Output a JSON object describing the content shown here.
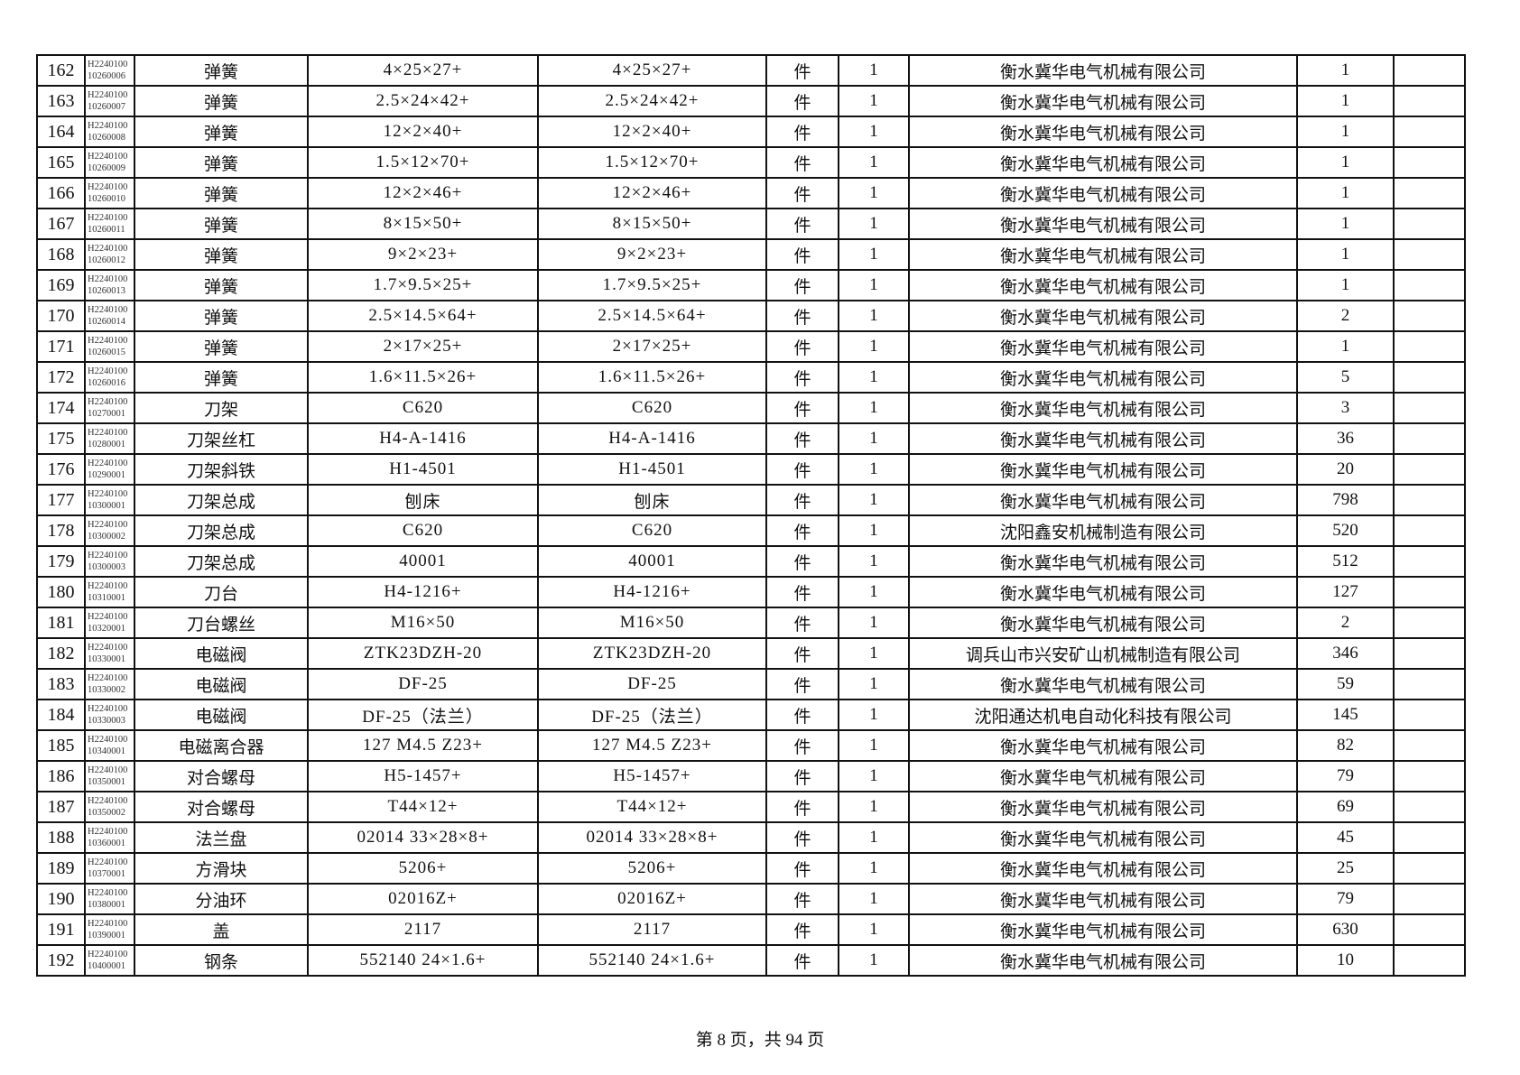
{
  "table": {
    "rows": [
      [
        "162",
        "H2240100",
        "10260006",
        "弹簧",
        "4×25×27+",
        "4×25×27+",
        "件",
        "1",
        "衡水冀华电气机械有限公司",
        "1",
        ""
      ],
      [
        "163",
        "H2240100",
        "10260007",
        "弹簧",
        "2.5×24×42+",
        "2.5×24×42+",
        "件",
        "1",
        "衡水冀华电气机械有限公司",
        "1",
        ""
      ],
      [
        "164",
        "H2240100",
        "10260008",
        "弹簧",
        "12×2×40+",
        "12×2×40+",
        "件",
        "1",
        "衡水冀华电气机械有限公司",
        "1",
        ""
      ],
      [
        "165",
        "H2240100",
        "10260009",
        "弹簧",
        "1.5×12×70+",
        "1.5×12×70+",
        "件",
        "1",
        "衡水冀华电气机械有限公司",
        "1",
        ""
      ],
      [
        "166",
        "H2240100",
        "10260010",
        "弹簧",
        "12×2×46+",
        "12×2×46+",
        "件",
        "1",
        "衡水冀华电气机械有限公司",
        "1",
        ""
      ],
      [
        "167",
        "H2240100",
        "10260011",
        "弹簧",
        "8×15×50+",
        "8×15×50+",
        "件",
        "1",
        "衡水冀华电气机械有限公司",
        "1",
        ""
      ],
      [
        "168",
        "H2240100",
        "10260012",
        "弹簧",
        "9×2×23+",
        "9×2×23+",
        "件",
        "1",
        "衡水冀华电气机械有限公司",
        "1",
        ""
      ],
      [
        "169",
        "H2240100",
        "10260013",
        "弹簧",
        "1.7×9.5×25+",
        "1.7×9.5×25+",
        "件",
        "1",
        "衡水冀华电气机械有限公司",
        "1",
        ""
      ],
      [
        "170",
        "H2240100",
        "10260014",
        "弹簧",
        "2.5×14.5×64+",
        "2.5×14.5×64+",
        "件",
        "1",
        "衡水冀华电气机械有限公司",
        "2",
        ""
      ],
      [
        "171",
        "H2240100",
        "10260015",
        "弹簧",
        "2×17×25+",
        "2×17×25+",
        "件",
        "1",
        "衡水冀华电气机械有限公司",
        "1",
        ""
      ],
      [
        "172",
        "H2240100",
        "10260016",
        "弹簧",
        "1.6×11.5×26+",
        "1.6×11.5×26+",
        "件",
        "1",
        "衡水冀华电气机械有限公司",
        "5",
        ""
      ],
      [
        "174",
        "H2240100",
        "10270001",
        "刀架",
        "C620",
        "C620",
        "件",
        "1",
        "衡水冀华电气机械有限公司",
        "3",
        ""
      ],
      [
        "175",
        "H2240100",
        "10280001",
        "刀架丝杠",
        "H4-A-1416",
        "H4-A-1416",
        "件",
        "1",
        "衡水冀华电气机械有限公司",
        "36",
        ""
      ],
      [
        "176",
        "H2240100",
        "10290001",
        "刀架斜铁",
        "H1-4501",
        "H1-4501",
        "件",
        "1",
        "衡水冀华电气机械有限公司",
        "20",
        ""
      ],
      [
        "177",
        "H2240100",
        "10300001",
        "刀架总成",
        "刨床",
        "刨床",
        "件",
        "1",
        "衡水冀华电气机械有限公司",
        "798",
        ""
      ],
      [
        "178",
        "H2240100",
        "10300002",
        "刀架总成",
        "C620",
        "C620",
        "件",
        "1",
        "沈阳鑫安机械制造有限公司",
        "520",
        ""
      ],
      [
        "179",
        "H2240100",
        "10300003",
        "刀架总成",
        "40001",
        "40001",
        "件",
        "1",
        "衡水冀华电气机械有限公司",
        "512",
        ""
      ],
      [
        "180",
        "H2240100",
        "10310001",
        "刀台",
        "H4-1216+",
        "H4-1216+",
        "件",
        "1",
        "衡水冀华电气机械有限公司",
        "127",
        ""
      ],
      [
        "181",
        "H2240100",
        "10320001",
        "刀台螺丝",
        "M16×50",
        "M16×50",
        "件",
        "1",
        "衡水冀华电气机械有限公司",
        "2",
        ""
      ],
      [
        "182",
        "H2240100",
        "10330001",
        "电磁阀",
        "ZTK23DZH-20",
        "ZTK23DZH-20",
        "件",
        "1",
        "调兵山市兴安矿山机械制造有限公司",
        "346",
        ""
      ],
      [
        "183",
        "H2240100",
        "10330002",
        "电磁阀",
        "DF-25",
        "DF-25",
        "件",
        "1",
        "衡水冀华电气机械有限公司",
        "59",
        ""
      ],
      [
        "184",
        "H2240100",
        "10330003",
        "电磁阀",
        "DF-25（法兰）",
        "DF-25（法兰）",
        "件",
        "1",
        "沈阳通达机电自动化科技有限公司",
        "145",
        ""
      ],
      [
        "185",
        "H2240100",
        "10340001",
        "电磁离合器",
        "127 M4.5 Z23+",
        "127 M4.5 Z23+",
        "件",
        "1",
        "衡水冀华电气机械有限公司",
        "82",
        ""
      ],
      [
        "186",
        "H2240100",
        "10350001",
        "对合螺母",
        "H5-1457+",
        "H5-1457+",
        "件",
        "1",
        "衡水冀华电气机械有限公司",
        "79",
        ""
      ],
      [
        "187",
        "H2240100",
        "10350002",
        "对合螺母",
        "T44×12+",
        "T44×12+",
        "件",
        "1",
        "衡水冀华电气机械有限公司",
        "69",
        ""
      ],
      [
        "188",
        "H2240100",
        "10360001",
        "法兰盘",
        "02014 33×28×8+",
        "02014 33×28×8+",
        "件",
        "1",
        "衡水冀华电气机械有限公司",
        "45",
        ""
      ],
      [
        "189",
        "H2240100",
        "10370001",
        "方滑块",
        "5206+",
        "5206+",
        "件",
        "1",
        "衡水冀华电气机械有限公司",
        "25",
        ""
      ],
      [
        "190",
        "H2240100",
        "10380001",
        "分油环",
        "02016Z+",
        "02016Z+",
        "件",
        "1",
        "衡水冀华电气机械有限公司",
        "79",
        ""
      ],
      [
        "191",
        "H2240100",
        "10390001",
        "盖",
        "2117",
        "2117",
        "件",
        "1",
        "衡水冀华电气机械有限公司",
        "630",
        ""
      ],
      [
        "192",
        "H2240100",
        "10400001",
        "钢条",
        "552140 24×1.6+",
        "552140 24×1.6+",
        "件",
        "1",
        "衡水冀华电气机械有限公司",
        "10",
        ""
      ]
    ]
  },
  "footer": {
    "page_text": "第 8 页，共 94 页"
  }
}
